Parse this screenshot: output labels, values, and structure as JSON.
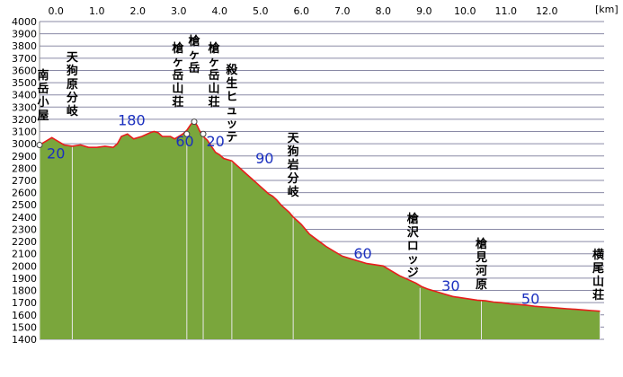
{
  "chart_data": {
    "type": "area",
    "title": "",
    "xlabel": "",
    "ylabel": "",
    "x_unit": "[km]",
    "xlim": [
      -0.4,
      13.4
    ],
    "ylim": [
      1400,
      4000
    ],
    "x_ticks": [
      "0.0",
      "1.0",
      "2.0",
      "3.0",
      "4.0",
      "5.0",
      "6.0",
      "7.0",
      "8.0",
      "9.0",
      "10.0",
      "11.0",
      "12.0"
    ],
    "y_ticks": [
      "1400",
      "1500",
      "1600",
      "1700",
      "1800",
      "1900",
      "2000",
      "2100",
      "2200",
      "2300",
      "2400",
      "2500",
      "2600",
      "2700",
      "2800",
      "2900",
      "3000",
      "3100",
      "3200",
      "3300",
      "3400",
      "3500",
      "3600",
      "3700",
      "3800",
      "3900",
      "4000"
    ],
    "grid": "horizontal",
    "colors": {
      "fill": "#7aa63c",
      "line": "#e81c1c",
      "grid": "#8a8aa6",
      "waypoint_line": "#e8e8e8",
      "time_text": "#1a2fbf"
    },
    "profile": {
      "x": [
        -0.4,
        -0.25,
        -0.1,
        0.0,
        0.2,
        0.4,
        0.6,
        0.8,
        1.0,
        1.2,
        1.4,
        1.5,
        1.6,
        1.75,
        1.9,
        2.1,
        2.3,
        2.4,
        2.5,
        2.6,
        2.8,
        2.9,
        3.0,
        3.1,
        3.2,
        3.3,
        3.38,
        3.45,
        3.52,
        3.6,
        3.7,
        3.8,
        3.9,
        4.0,
        4.1,
        4.2,
        4.3,
        4.4,
        4.5,
        4.6,
        4.7,
        4.8,
        4.9,
        5.0,
        5.1,
        5.2,
        5.3,
        5.4,
        5.5,
        5.6,
        5.7,
        5.8,
        5.9,
        6.0,
        6.2,
        6.4,
        6.6,
        6.8,
        7.0,
        7.2,
        7.4,
        7.6,
        7.8,
        8.0,
        8.2,
        8.4,
        8.6,
        8.8,
        8.95,
        9.1,
        9.3,
        9.5,
        9.7,
        9.9,
        10.1,
        10.3,
        10.5,
        10.7,
        10.9,
        11.1,
        11.3,
        11.5,
        11.7,
        11.9,
        12.1,
        12.3,
        12.5,
        12.7,
        12.9,
        13.1,
        13.3
      ],
      "y": [
        2990,
        3020,
        3050,
        3030,
        2990,
        2980,
        2990,
        2970,
        2970,
        2980,
        2970,
        3000,
        3060,
        3080,
        3040,
        3060,
        3090,
        3100,
        3090,
        3060,
        3060,
        3040,
        3060,
        3080,
        3110,
        3160,
        3180,
        3150,
        3100,
        3060,
        3030,
        2980,
        2930,
        2910,
        2880,
        2870,
        2860,
        2830,
        2800,
        2770,
        2740,
        2710,
        2680,
        2650,
        2620,
        2590,
        2570,
        2540,
        2500,
        2470,
        2440,
        2400,
        2370,
        2340,
        2260,
        2210,
        2160,
        2120,
        2080,
        2060,
        2040,
        2020,
        2010,
        2000,
        1960,
        1920,
        1890,
        1860,
        1830,
        1810,
        1790,
        1770,
        1750,
        1740,
        1730,
        1720,
        1715,
        1705,
        1700,
        1690,
        1685,
        1680,
        1670,
        1665,
        1660,
        1655,
        1650,
        1645,
        1640,
        1635,
        1630
      ]
    },
    "waypoints": [
      {
        "name": "南岳小屋",
        "x": -0.4,
        "y": 2990
      },
      {
        "name": "天狗原分岐",
        "x": 0.4,
        "y": 2980
      },
      {
        "name": "槍ヶ岳山荘",
        "x": 3.2,
        "y": 3080
      },
      {
        "name": "槍ヶ岳",
        "x": 3.38,
        "y": 3180
      },
      {
        "name": "槍ヶ岳山荘",
        "x": 3.6,
        "y": 3080
      },
      {
        "name": "殺生ヒュッテ",
        "x": 4.3,
        "y": 2860
      },
      {
        "name": "天狗岩分岐",
        "x": 5.8,
        "y": 2440
      },
      {
        "name": "槍沢ロッジ",
        "x": 8.9,
        "y": 1820
      },
      {
        "name": "槍見河原",
        "x": 10.4,
        "y": 1715
      },
      {
        "name": "横尾山荘",
        "x": 13.3,
        "y": 1630
      }
    ],
    "segment_times": [
      {
        "label": "20",
        "x": 0.0,
        "y": 2880
      },
      {
        "label": "180",
        "x": 1.85,
        "y": 3150
      },
      {
        "label": "60",
        "x": 3.15,
        "y": 2980
      },
      {
        "label": "20",
        "x": 3.9,
        "y": 2980
      },
      {
        "label": "90",
        "x": 5.1,
        "y": 2840
      },
      {
        "label": "60",
        "x": 7.5,
        "y": 2060
      },
      {
        "label": "30",
        "x": 9.65,
        "y": 1795
      },
      {
        "label": "50",
        "x": 11.6,
        "y": 1690
      }
    ]
  }
}
